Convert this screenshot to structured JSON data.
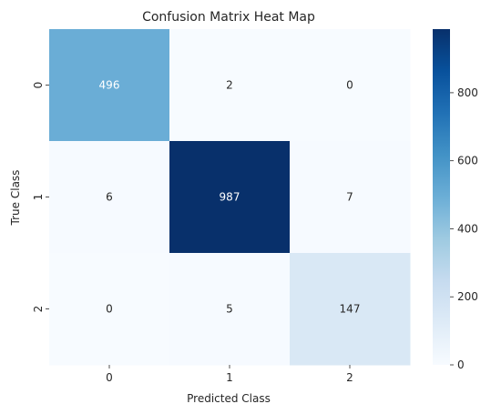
{
  "chart_data": {
    "type": "heatmap",
    "title": "Confusion Matrix Heat Map",
    "xlabel": "Predicted Class",
    "ylabel": "True Class",
    "x_categories": [
      "0",
      "1",
      "2"
    ],
    "y_categories": [
      "0",
      "1",
      "2"
    ],
    "values": [
      [
        496,
        2,
        0
      ],
      [
        6,
        987,
        7
      ],
      [
        0,
        5,
        147
      ]
    ],
    "colormap": "Blues",
    "color_low": "#f7fbff",
    "color_high": "#08306b",
    "vmin": 0,
    "vmax": 987,
    "colorbar_ticks": [
      0,
      200,
      400,
      600,
      800
    ],
    "annotations": true,
    "grid": false
  }
}
